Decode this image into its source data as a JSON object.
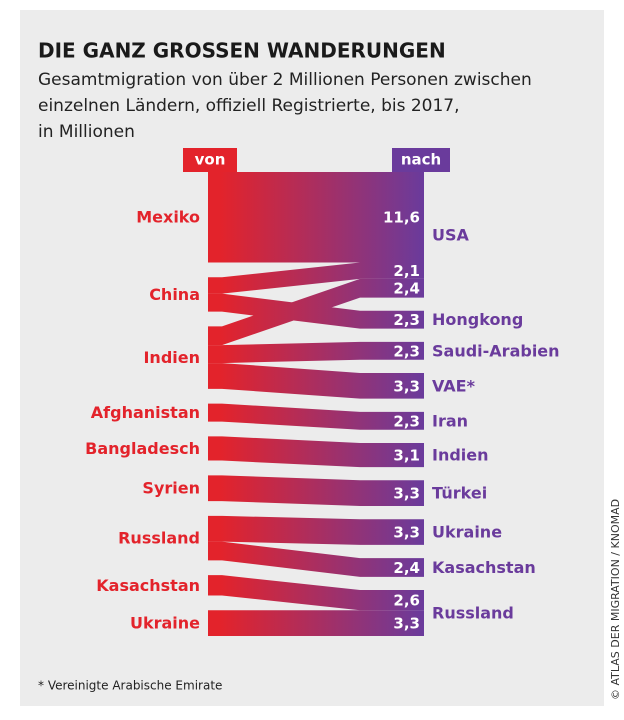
{
  "chart_data": {
    "type": "sankey",
    "title": "DIE GANZ GROSSEN WANDERUNGEN",
    "subtitle": [
      "Gesamtmigration von über 2 Millionen Personen zwischen",
      "einzelnen Ländern, offiziell Registrierte, bis 2017,",
      "in Millionen"
    ],
    "from_header": "von",
    "to_header": "nach",
    "sources": [
      "Mexiko",
      "China",
      "Indien",
      "Afghanistan",
      "Bangladesch",
      "Syrien",
      "Russland",
      "Kasachstan",
      "Ukraine"
    ],
    "targets": [
      "USA",
      "Hongkong",
      "Saudi-Arabien",
      "VAE*",
      "Iran",
      "Indien",
      "Türkei",
      "Ukraine",
      "Kasachstan",
      "Russland"
    ],
    "flows": [
      {
        "from": "Mexiko",
        "to": "USA",
        "value": 11.6,
        "value_label": "11,6"
      },
      {
        "from": "China",
        "to": "USA",
        "value": 2.1,
        "value_label": "2,1"
      },
      {
        "from": "China",
        "to": "Hongkong",
        "value": 2.3,
        "value_label": "2,3"
      },
      {
        "from": "Indien",
        "to": "USA",
        "value": 2.4,
        "value_label": "2,4"
      },
      {
        "from": "Indien",
        "to": "Saudi-Arabien",
        "value": 2.3,
        "value_label": "2,3"
      },
      {
        "from": "Indien",
        "to": "VAE*",
        "value": 3.3,
        "value_label": "3,3"
      },
      {
        "from": "Afghanistan",
        "to": "Iran",
        "value": 2.3,
        "value_label": "2,3"
      },
      {
        "from": "Bangladesch",
        "to": "Indien",
        "value": 3.1,
        "value_label": "3,1"
      },
      {
        "from": "Syrien",
        "to": "Türkei",
        "value": 3.3,
        "value_label": "3,3"
      },
      {
        "from": "Russland",
        "to": "Ukraine",
        "value": 3.3,
        "value_label": "3,3"
      },
      {
        "from": "Russland",
        "to": "Kasachstan",
        "value": 2.4,
        "value_label": "2,4"
      },
      {
        "from": "Kasachstan",
        "to": "Russland",
        "value": 2.6,
        "value_label": "2,6"
      },
      {
        "from": "Ukraine",
        "to": "Russland",
        "value": 3.3,
        "value_label": "3,3"
      }
    ],
    "source_color": "#e3232b",
    "target_color": "#6a3b9c",
    "footnote": "* Vereinigte Arabische Emirate",
    "credit": "© ATLAS DER MIGRATION / KNOMAD"
  }
}
